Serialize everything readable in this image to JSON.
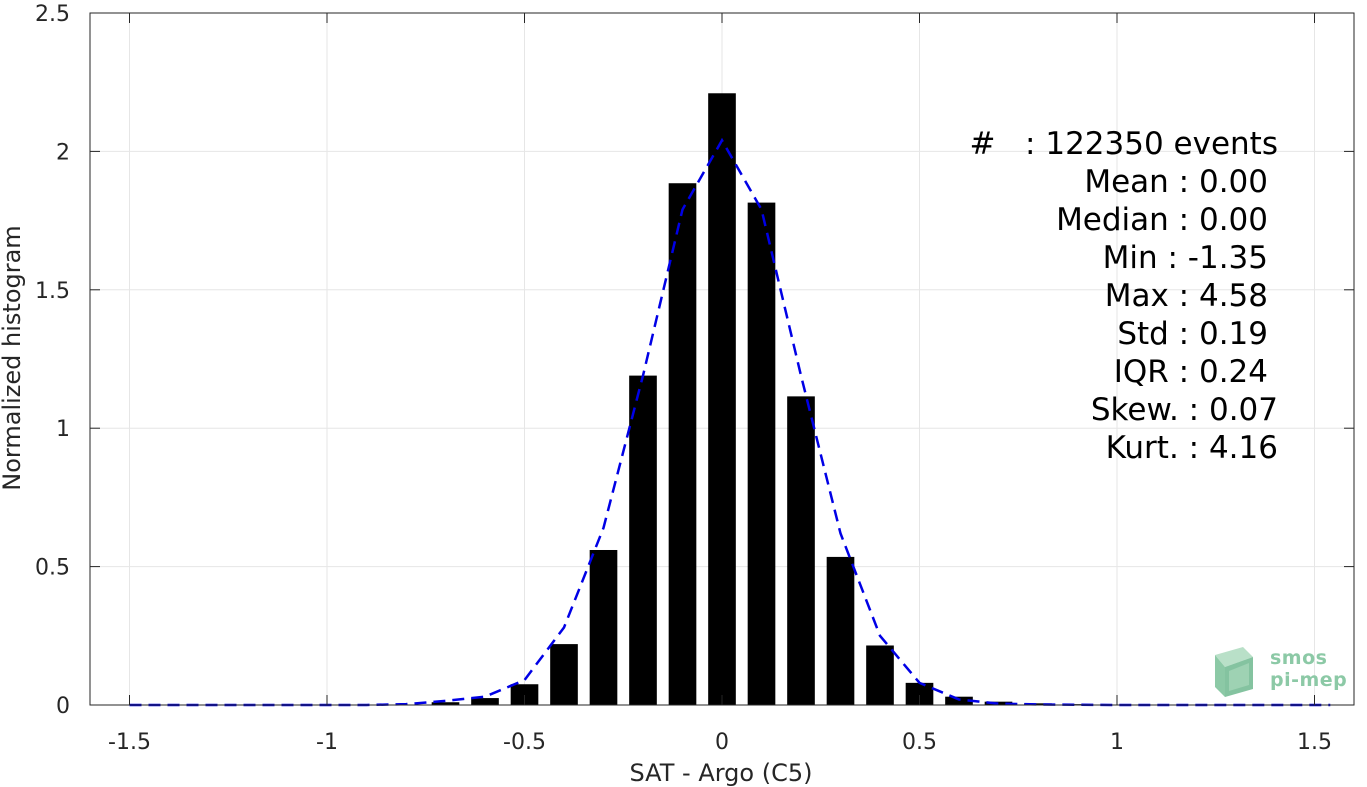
{
  "chart_data": {
    "type": "bar",
    "xlabel": "SAT - Argo (C5)",
    "ylabel": "Normalized histogram",
    "xlim": [
      -1.6,
      1.6
    ],
    "ylim": [
      0,
      2.5
    ],
    "grid": true,
    "xticks": [
      -1.5,
      -1,
      -0.5,
      0,
      0.5,
      1,
      1.5
    ],
    "xtick_labels": [
      "-1.5",
      "-1",
      "-0.5",
      "0",
      "0.5",
      "1",
      "1.5"
    ],
    "yticks": [
      0,
      0.5,
      1,
      1.5,
      2,
      2.5
    ],
    "ytick_labels": [
      "0",
      "0.5",
      "1",
      "1.5",
      "2",
      "2.5"
    ],
    "bar_width": 0.07,
    "bars": {
      "x": [
        -0.7,
        -0.6,
        -0.5,
        -0.4,
        -0.3,
        -0.2,
        -0.1,
        0.0,
        0.1,
        0.2,
        0.3,
        0.4,
        0.5,
        0.6,
        0.7,
        0.8,
        0.9
      ],
      "values": [
        0.01,
        0.025,
        0.075,
        0.22,
        0.56,
        1.19,
        1.885,
        2.21,
        1.815,
        1.115,
        0.535,
        0.215,
        0.08,
        0.03,
        0.012,
        0.006,
        0.003
      ],
      "color": "#000000"
    },
    "series": [
      {
        "style": "dashed",
        "color": "#0000e6",
        "x": [
          -1.5,
          -1.3,
          -1.1,
          -0.9,
          -0.8,
          -0.7,
          -0.6,
          -0.5,
          -0.4,
          -0.3,
          -0.2,
          -0.1,
          0.0,
          0.1,
          0.2,
          0.3,
          0.4,
          0.5,
          0.6,
          0.7,
          0.8,
          1.0,
          1.2,
          1.54
        ],
        "y": [
          0,
          0,
          0,
          0,
          0.003,
          0.015,
          0.03,
          0.09,
          0.28,
          0.64,
          1.19,
          1.79,
          2.04,
          1.79,
          1.19,
          0.62,
          0.25,
          0.08,
          0.02,
          0.005,
          0.002,
          0,
          0,
          0
        ]
      }
    ]
  },
  "stats": {
    "lines": [
      "#   : 122350 events",
      "Mean : 0.00",
      "Median : 0.00",
      "Min : -1.35",
      "Max : 4.58",
      "Std : 0.19",
      "IQR : 0.24",
      "Skew. : 0.07",
      "Kurt. : 4.16"
    ]
  },
  "logo": {
    "line1": "smos",
    "line2": "pi-mep",
    "color": "#8cc9a6"
  }
}
